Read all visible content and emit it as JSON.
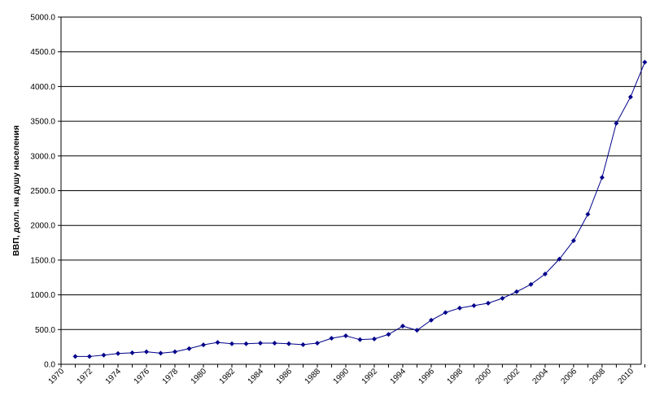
{
  "chart_data": {
    "type": "line",
    "title": "",
    "xlabel": "",
    "ylabel": "ВВП, долл. на душу населения",
    "ylim": [
      0,
      5000
    ],
    "xlim": [
      1970,
      2010
    ],
    "grid": true,
    "legend": "none",
    "y_ticks": [
      "0.0",
      "500.0",
      "1000.0",
      "1500.0",
      "2000.0",
      "2500.0",
      "3000.0",
      "3500.0",
      "4000.0",
      "4500.0",
      "5000.0"
    ],
    "x_ticks": [
      "1970",
      "1972",
      "1974",
      "1976",
      "1978",
      "1980",
      "1982",
      "1984",
      "1986",
      "1988",
      "1990",
      "1992",
      "1994",
      "1996",
      "1998",
      "2000",
      "2002",
      "2004",
      "2006",
      "2008",
      "2010"
    ],
    "series": [
      {
        "color": "#00008B",
        "marker": "diamond",
        "x": [
          1971,
          1972,
          1973,
          1974,
          1975,
          1976,
          1977,
          1978,
          1979,
          1980,
          1981,
          1982,
          1983,
          1984,
          1985,
          1986,
          1987,
          1988,
          1989,
          1990,
          1991,
          1992,
          1993,
          1994,
          1995,
          1996,
          1997,
          1998,
          1999,
          2000,
          2001,
          2002,
          2003,
          2004,
          2005,
          2006,
          2007,
          2008,
          2009,
          2010,
          2011
        ],
        "values": [
          112,
          112,
          132,
          155,
          165,
          180,
          160,
          180,
          225,
          280,
          315,
          295,
          295,
          305,
          305,
          295,
          283,
          305,
          375,
          410,
          355,
          365,
          430,
          550,
          490,
          635,
          745,
          810,
          845,
          880,
          950,
          1045,
          1150,
          1300,
          1515,
          1780,
          2160,
          2690,
          3470,
          3850,
          4350
        ]
      }
    ]
  }
}
